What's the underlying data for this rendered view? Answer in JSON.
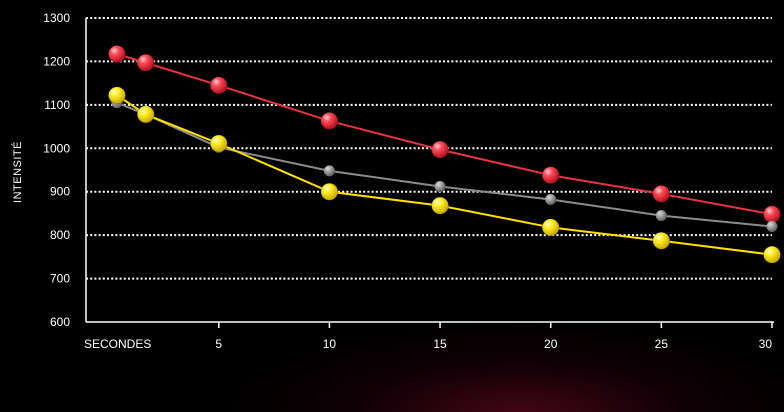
{
  "chart_data": {
    "type": "line",
    "title": "",
    "xlabel": "SECONDES",
    "ylabel": "INTENSITÉ",
    "xlim": [
      -1,
      30
    ],
    "ylim": [
      600,
      1300
    ],
    "y_ticks": [
      600,
      700,
      800,
      900,
      1000,
      1100,
      1200,
      1300
    ],
    "x_tick_values": [
      5,
      10,
      15,
      20,
      25,
      30
    ],
    "x_tick_labels": [
      "5",
      "10",
      "15",
      "20",
      "25",
      "30"
    ],
    "grid": "horizontal dotted",
    "legend": "none",
    "series": [
      {
        "color": "#ff3344",
        "line_color": "#e8343f",
        "marker": "sphere",
        "x": [
          0.4,
          1.7,
          5,
          10,
          15,
          20,
          25,
          30
        ],
        "values": [
          1217,
          1197,
          1145,
          1063,
          997,
          938,
          895,
          848
        ]
      },
      {
        "color": "#9a9a9a",
        "line_color": "#8c8c8c",
        "marker": "dot",
        "x": [
          0.4,
          1.7,
          5,
          10,
          15,
          20,
          25,
          30
        ],
        "values": [
          1105,
          1078,
          1002,
          948,
          912,
          882,
          845,
          820
        ]
      },
      {
        "color": "#ffee22",
        "line_color": "#ffe000",
        "marker": "sphere",
        "x": [
          0.4,
          1.7,
          5,
          10,
          15,
          20,
          25,
          30
        ],
        "values": [
          1122,
          1078,
          1011,
          900,
          868,
          818,
          787,
          755
        ]
      }
    ]
  }
}
